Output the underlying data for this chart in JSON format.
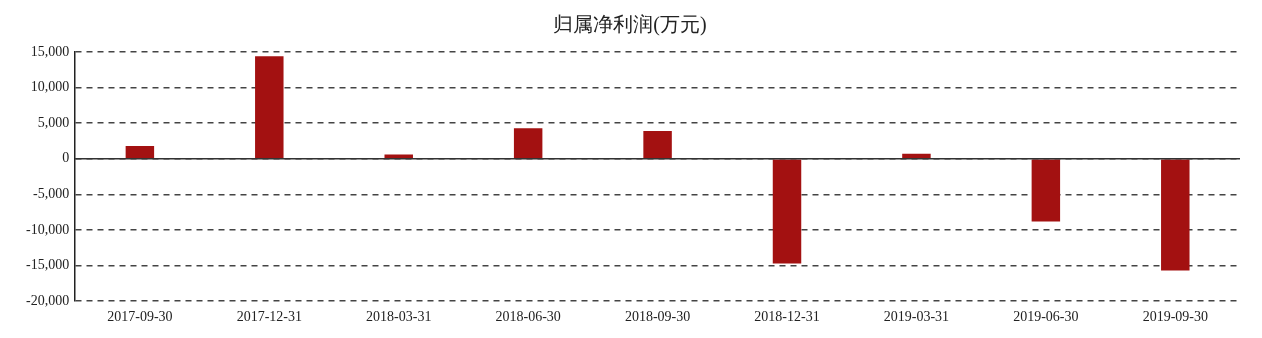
{
  "chart_data": {
    "type": "bar",
    "title": "归属净利润(万元)",
    "categories": [
      "2017-09-30",
      "2017-12-31",
      "2018-03-31",
      "2018-06-30",
      "2018-09-30",
      "2018-12-31",
      "2019-03-31",
      "2019-06-30",
      "2019-09-30"
    ],
    "values": [
      1800,
      14400,
      600,
      4300,
      3900,
      -14700,
      700,
      -8800,
      -15700
    ],
    "color": "#a31111",
    "ylim": [
      -20000,
      15000
    ],
    "yticks": [
      {
        "value": -20000,
        "label": "-20,000"
      },
      {
        "value": -15000,
        "label": "-15,000"
      },
      {
        "value": -10000,
        "label": "-10,000"
      },
      {
        "value": -5000,
        "label": "-5,000"
      },
      0,
      {
        "value": 5000,
        "label": "5,000"
      },
      {
        "value": 10000,
        "label": "10,000"
      },
      {
        "value": 15000,
        "label": "15,000"
      }
    ],
    "grid": "y",
    "line_style": "dashed"
  }
}
